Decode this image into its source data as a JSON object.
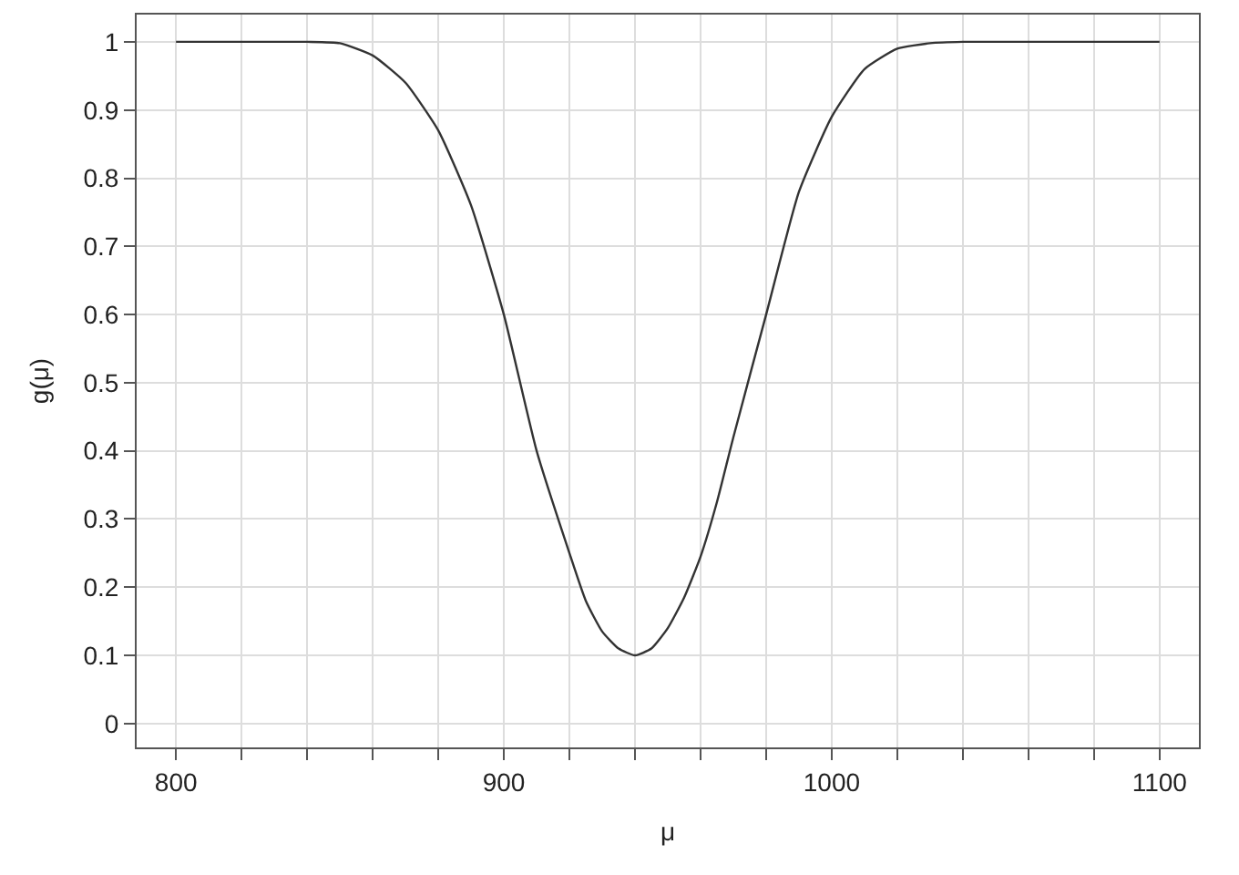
{
  "chart_data": {
    "type": "line",
    "xlabel": "μ",
    "ylabel": "g(μ)",
    "x": [
      800,
      820,
      840,
      850,
      860,
      870,
      880,
      890,
      900,
      910,
      920,
      925,
      930,
      935,
      940,
      945,
      950,
      955,
      960,
      965,
      970,
      980,
      990,
      1000,
      1010,
      1020,
      1030,
      1040,
      1060,
      1080,
      1100
    ],
    "series": [
      {
        "color": "#333333",
        "values": [
          1,
          1,
          1,
          0.998,
          0.98,
          0.94,
          0.87,
          0.76,
          0.6,
          0.4,
          0.25,
          0.18,
          0.135,
          0.11,
          0.1,
          0.11,
          0.14,
          0.185,
          0.245,
          0.325,
          0.42,
          0.6,
          0.78,
          0.89,
          0.96,
          0.99,
          0.998,
          1,
          1,
          1,
          1
        ]
      }
    ],
    "xlim": [
      788,
      1112
    ],
    "ylim": [
      -0.035,
      1.04
    ],
    "xticks": [
      800,
      {
        "value": 820,
        "label": null
      },
      {
        "value": 840,
        "label": null
      },
      {
        "value": 860,
        "label": null
      },
      {
        "value": 880,
        "label": null
      },
      900,
      {
        "value": 920,
        "label": null
      },
      {
        "value": 940,
        "label": null
      },
      {
        "value": 960,
        "label": null
      },
      {
        "value": 980,
        "label": null
      },
      1000,
      {
        "value": 1020,
        "label": null
      },
      {
        "value": 1040,
        "label": null
      },
      {
        "value": 1060,
        "label": null
      },
      {
        "value": 1080,
        "label": null
      },
      1100
    ],
    "yticks": [
      0,
      0.1,
      0.2,
      0.3,
      0.4,
      0.5,
      0.6,
      0.7,
      0.8,
      0.9,
      1
    ],
    "grid": true,
    "marker": "none",
    "line_style": "solid"
  }
}
